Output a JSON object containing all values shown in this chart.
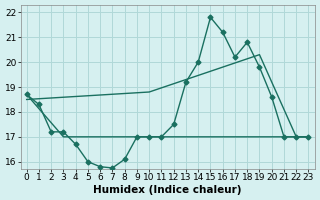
{
  "xlabel": "Humidex (Indice chaleur)",
  "bg_color": "#d6f0f0",
  "grid_color": "#b0d8d8",
  "line_color": "#1a7060",
  "xlim": [
    -0.5,
    23.5
  ],
  "ylim": [
    15.7,
    22.3
  ],
  "yticks": [
    16,
    17,
    18,
    19,
    20,
    21,
    22
  ],
  "xticks": [
    0,
    1,
    2,
    3,
    4,
    5,
    6,
    7,
    8,
    9,
    10,
    11,
    12,
    13,
    14,
    15,
    16,
    17,
    18,
    19,
    20,
    21,
    22,
    23
  ],
  "series1_x": [
    0,
    1,
    2,
    3,
    4,
    5,
    6,
    7,
    8,
    9,
    10,
    11,
    12,
    13,
    14,
    15,
    16,
    17,
    18,
    19,
    20,
    21,
    22,
    23
  ],
  "series1_y": [
    18.7,
    18.3,
    17.2,
    17.2,
    16.7,
    16.0,
    15.8,
    15.75,
    16.1,
    17.0,
    17.0,
    17.0,
    17.5,
    19.2,
    20.0,
    21.8,
    21.2,
    20.2,
    20.8,
    19.8,
    18.6,
    17.0,
    17.0,
    17.0
  ],
  "series2_x": [
    0,
    3,
    21,
    22,
    23
  ],
  "series2_y": [
    18.7,
    17.0,
    17.0,
    17.0,
    17.0
  ],
  "series3_x": [
    0,
    10,
    19,
    22,
    23
  ],
  "series3_y": [
    18.5,
    18.8,
    20.3,
    17.0,
    17.0
  ],
  "tick_fontsize": 6.5,
  "xlabel_fontsize": 7.5
}
